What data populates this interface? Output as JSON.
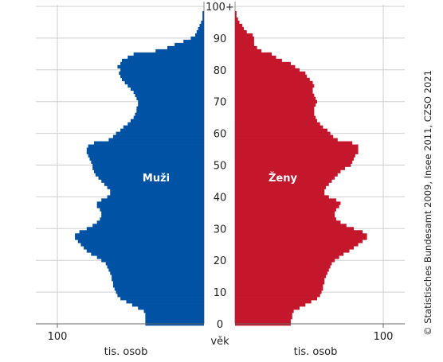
{
  "chart_data": {
    "type": "bar",
    "orientation": "horizontal",
    "subtype": "population-pyramid",
    "age_axis": {
      "label": "věk",
      "ticks": [
        "0",
        "10",
        "20",
        "30",
        "40",
        "50",
        "60",
        "70",
        "80",
        "90",
        "100+"
      ]
    },
    "x_axis": {
      "label": "tis. osob",
      "tick_value": 100,
      "tick_label": "100",
      "max": 100
    },
    "grid": true,
    "colors": {
      "male": "#0052a5",
      "female": "#c4172c"
    },
    "series": [
      {
        "name": "Muži",
        "side": "left",
        "ages": [
          0,
          1,
          2,
          3,
          4,
          5,
          6,
          7,
          8,
          9,
          10,
          11,
          12,
          13,
          14,
          15,
          16,
          17,
          18,
          19,
          20,
          21,
          22,
          23,
          24,
          25,
          26,
          27,
          28,
          29,
          30,
          31,
          32,
          33,
          34,
          35,
          36,
          37,
          38,
          39,
          40,
          41,
          42,
          43,
          44,
          45,
          46,
          47,
          48,
          49,
          50,
          51,
          52,
          53,
          54,
          55,
          56,
          57,
          58,
          59,
          60,
          61,
          62,
          63,
          64,
          65,
          66,
          67,
          68,
          69,
          70,
          71,
          72,
          73,
          74,
          75,
          76,
          77,
          78,
          79,
          80,
          81,
          82,
          83,
          84,
          85,
          86,
          87,
          88,
          89,
          90,
          91,
          92,
          93,
          94,
          95,
          96,
          97,
          98,
          99,
          100
        ],
        "values": [
          40,
          40,
          40,
          40,
          41,
          45,
          49,
          53,
          57,
          59,
          60,
          61,
          62,
          62,
          63,
          63,
          64,
          65,
          66,
          67,
          70,
          73,
          77,
          80,
          82,
          84,
          86,
          88,
          88,
          85,
          80,
          76,
          73,
          71,
          70,
          70,
          71,
          73,
          73,
          70,
          66,
          64,
          64,
          66,
          68,
          70,
          72,
          74,
          75,
          76,
          76,
          77,
          78,
          79,
          80,
          80,
          79,
          75,
          65,
          62,
          60,
          57,
          55,
          52,
          50,
          48,
          47,
          46,
          46,
          45,
          45,
          46,
          47,
          48,
          50,
          52,
          54,
          56,
          57,
          58,
          57,
          59,
          57,
          56,
          52,
          48,
          33,
          25,
          20,
          14,
          9,
          6,
          5,
          4,
          3,
          2,
          1,
          1,
          1,
          0,
          0
        ]
      },
      {
        "name": "Ženy",
        "side": "right",
        "ages": [
          0,
          1,
          2,
          3,
          4,
          5,
          6,
          7,
          8,
          9,
          10,
          11,
          12,
          13,
          14,
          15,
          16,
          17,
          18,
          19,
          20,
          21,
          22,
          23,
          24,
          25,
          26,
          27,
          28,
          29,
          30,
          31,
          32,
          33,
          34,
          35,
          36,
          37,
          38,
          39,
          40,
          41,
          42,
          43,
          44,
          45,
          46,
          47,
          48,
          49,
          50,
          51,
          52,
          53,
          54,
          55,
          56,
          57,
          58,
          59,
          60,
          61,
          62,
          63,
          64,
          65,
          66,
          67,
          68,
          69,
          70,
          71,
          72,
          73,
          74,
          75,
          76,
          77,
          78,
          79,
          80,
          81,
          82,
          83,
          84,
          85,
          86,
          87,
          88,
          89,
          90,
          91,
          92,
          93,
          94,
          95,
          96,
          97,
          98,
          99,
          100
        ],
        "values": [
          38,
          38,
          39,
          39,
          40,
          44,
          48,
          52,
          56,
          58,
          59,
          60,
          60,
          61,
          61,
          62,
          63,
          64,
          65,
          66,
          68,
          71,
          74,
          78,
          81,
          84,
          87,
          90,
          90,
          87,
          81,
          76,
          72,
          69,
          68,
          68,
          69,
          71,
          72,
          69,
          64,
          61,
          61,
          62,
          64,
          66,
          68,
          70,
          72,
          75,
          79,
          80,
          81,
          82,
          84,
          84,
          84,
          80,
          70,
          67,
          65,
          63,
          60,
          58,
          56,
          55,
          54,
          54,
          54,
          55,
          56,
          55,
          54,
          53,
          53,
          54,
          53,
          51,
          49,
          48,
          44,
          41,
          38,
          32,
          28,
          25,
          18,
          15,
          13,
          13,
          13,
          12,
          8,
          6,
          5,
          3,
          2,
          1,
          1,
          0,
          0
        ]
      }
    ],
    "source_note": "© Statistisches Bundesamt 2009, Insee 2011, CZSO 2021"
  }
}
